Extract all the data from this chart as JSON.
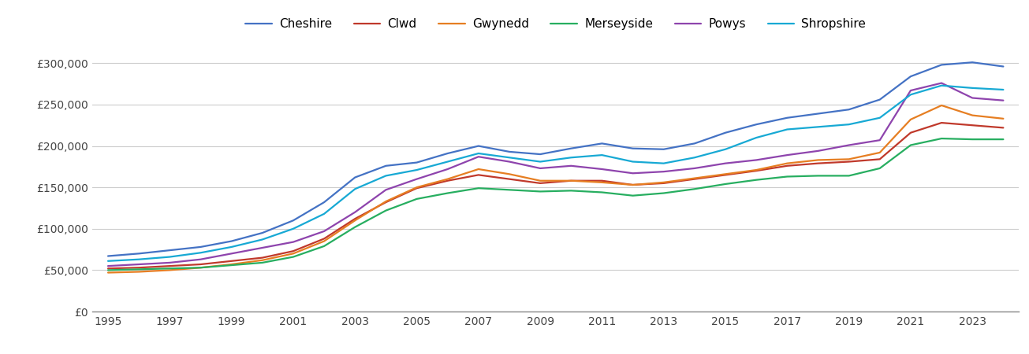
{
  "years": [
    1995,
    1996,
    1997,
    1998,
    1999,
    2000,
    2001,
    2002,
    2003,
    2004,
    2005,
    2006,
    2007,
    2008,
    2009,
    2010,
    2011,
    2012,
    2013,
    2014,
    2015,
    2016,
    2017,
    2018,
    2019,
    2020,
    2021,
    2022,
    2023,
    2024
  ],
  "series": {
    "Cheshire": [
      67000,
      70000,
      74000,
      78000,
      85000,
      95000,
      110000,
      132000,
      162000,
      176000,
      180000,
      191000,
      200000,
      193000,
      190000,
      197000,
      203000,
      197000,
      196000,
      203000,
      216000,
      226000,
      234000,
      239000,
      244000,
      256000,
      284000,
      298000,
      301000,
      296000
    ],
    "Clwd": [
      52000,
      53000,
      55000,
      57000,
      61000,
      65000,
      73000,
      88000,
      112000,
      132000,
      149000,
      158000,
      165000,
      160000,
      155000,
      158000,
      158000,
      153000,
      155000,
      160000,
      165000,
      170000,
      176000,
      179000,
      181000,
      184000,
      216000,
      228000,
      225000,
      222000
    ],
    "Gwynedd": [
      47000,
      48000,
      50000,
      53000,
      57000,
      62000,
      70000,
      85000,
      110000,
      133000,
      150000,
      160000,
      172000,
      166000,
      158000,
      158000,
      156000,
      153000,
      156000,
      161000,
      166000,
      171000,
      179000,
      183000,
      184000,
      192000,
      232000,
      249000,
      237000,
      233000
    ],
    "Merseyside": [
      50000,
      51000,
      52000,
      53000,
      56000,
      59000,
      66000,
      79000,
      102000,
      122000,
      136000,
      143000,
      149000,
      147000,
      145000,
      146000,
      144000,
      140000,
      143000,
      148000,
      154000,
      159000,
      163000,
      164000,
      164000,
      173000,
      201000,
      209000,
      208000,
      208000
    ],
    "Powys": [
      55000,
      57000,
      59000,
      63000,
      70000,
      77000,
      84000,
      97000,
      120000,
      147000,
      160000,
      172000,
      187000,
      181000,
      173000,
      176000,
      172000,
      167000,
      169000,
      173000,
      179000,
      183000,
      189000,
      194000,
      201000,
      207000,
      267000,
      276000,
      258000,
      255000
    ],
    "Shropshire": [
      61000,
      63000,
      66000,
      71000,
      78000,
      87000,
      100000,
      118000,
      148000,
      164000,
      171000,
      181000,
      191000,
      186000,
      181000,
      186000,
      189000,
      181000,
      179000,
      186000,
      196000,
      210000,
      220000,
      223000,
      226000,
      234000,
      262000,
      273000,
      270000,
      268000
    ]
  },
  "colors": {
    "Cheshire": "#4472c4",
    "Clwd": "#c0392b",
    "Gwynedd": "#e67e22",
    "Merseyside": "#27ae60",
    "Powys": "#8e44ad",
    "Shropshire": "#17a9d4"
  },
  "ylim": [
    0,
    325000
  ],
  "yticks": [
    0,
    50000,
    100000,
    150000,
    200000,
    250000,
    300000
  ],
  "xticks": [
    1995,
    1997,
    1999,
    2001,
    2003,
    2005,
    2007,
    2009,
    2011,
    2013,
    2015,
    2017,
    2019,
    2021,
    2023
  ],
  "xlim": [
    1994.5,
    2024.5
  ],
  "background_color": "#ffffff",
  "grid_color": "#cccccc",
  "legend_order": [
    "Cheshire",
    "Clwd",
    "Gwynedd",
    "Merseyside",
    "Powys",
    "Shropshire"
  ]
}
